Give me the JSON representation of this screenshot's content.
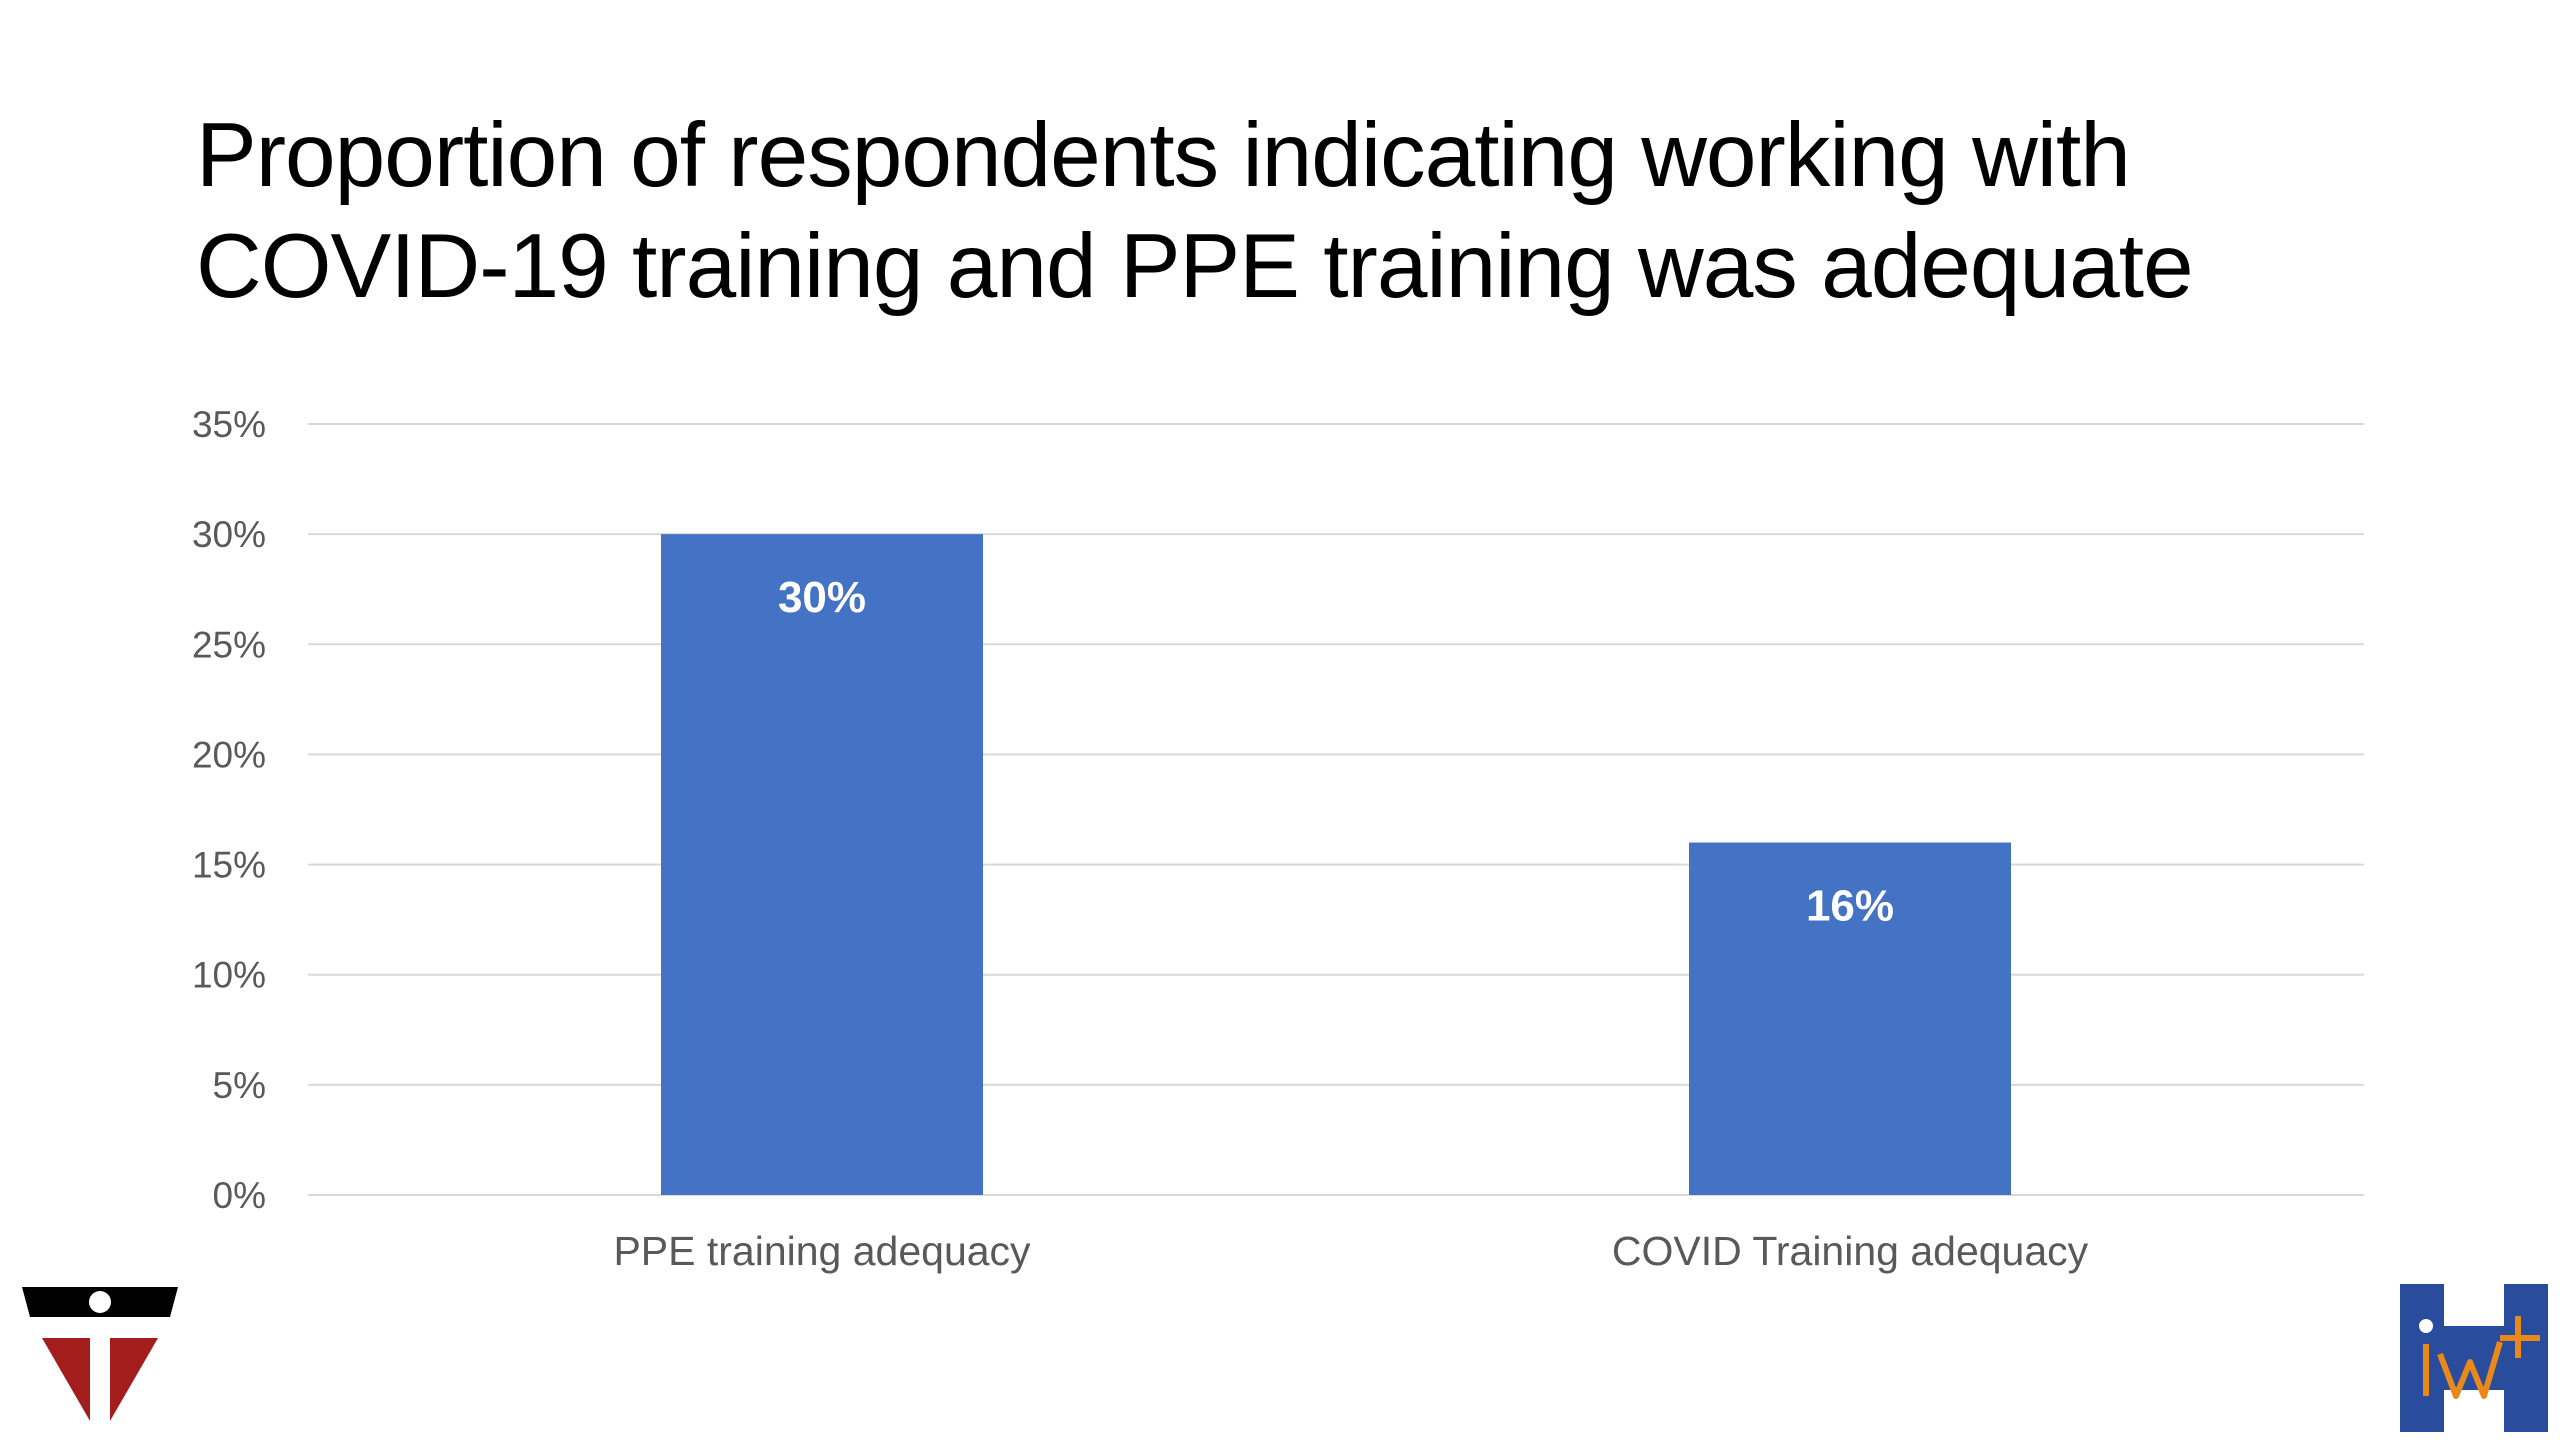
{
  "title": {
    "line1": "Proportion of respondents indicating working with",
    "line2": "COVID-19 training and PPE training was adequate"
  },
  "colors": {
    "bar": "#4472C4",
    "grid": "#D9D9D9",
    "tick_text": "#595959",
    "bar_label": "#FFFFFF",
    "logo_left_black": "#000000",
    "logo_left_red": "#A31D1D",
    "logo_right_blue": "#2A4C9C",
    "logo_right_orange": "#E8891A"
  },
  "chart_data": {
    "type": "bar",
    "categories": [
      "PPE training adequacy",
      "COVID Training adequacy"
    ],
    "values": [
      30,
      16
    ],
    "value_labels": [
      "30%",
      "16%"
    ],
    "yticks": [
      "0%",
      "5%",
      "10%",
      "15%",
      "20%",
      "25%",
      "30%",
      "35%"
    ],
    "ylim": [
      0,
      35
    ],
    "grid": true,
    "legend": "none",
    "xlabel": "",
    "ylabel": ""
  },
  "logos": {
    "left": "university-seal-logo",
    "right": "iwh-logo"
  }
}
